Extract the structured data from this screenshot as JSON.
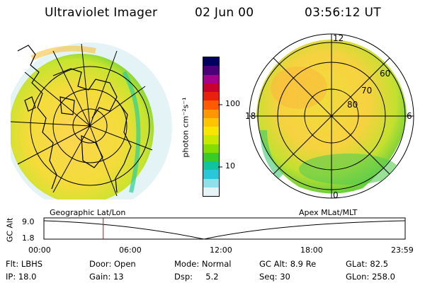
{
  "header": {
    "instrument": "Ultraviolet Imager",
    "date": "02 Jun 00",
    "time": "03:56:12 UT"
  },
  "panels": {
    "left_label": "Geographic Lat/Lon",
    "right_label": "Apex MLat/MLT"
  },
  "polar_grid": {
    "mlt_labels": [
      "12",
      "18",
      "6",
      "0"
    ],
    "mlat_labels": [
      "60",
      "70",
      "80"
    ]
  },
  "colorbar": {
    "unit_label": "photon cm⁻²s⁻¹",
    "ticks": [
      "100",
      "10"
    ],
    "colors": [
      "#000060",
      "#4b007a",
      "#a4008a",
      "#c80030",
      "#e82010",
      "#ff5a00",
      "#ff9800",
      "#ffc400",
      "#f6e600",
      "#c8e800",
      "#84dc00",
      "#38cc28",
      "#10c4a0",
      "#28c8d8",
      "#90e0ec",
      "#e6f4f6"
    ]
  },
  "alt_strip": {
    "ylabel": "GC Alt",
    "y_top": "9.0",
    "y_bottom": "1.8",
    "ticks": [
      "00:00",
      "06:00",
      "12:00",
      "18:00",
      "23:59"
    ],
    "current_time_marker_hour": 3.94
  },
  "info": {
    "row1": [
      "Flt: LBHS",
      "Door: Open",
      "Mode: Normal",
      "GC Alt: 8.9 Re",
      "GLat:  82.5"
    ],
    "row2": [
      "IP: 18.0",
      "Gain: 13",
      "Dsp:     5.2",
      "Seq: 30",
      "GLon: 258.0"
    ]
  }
}
